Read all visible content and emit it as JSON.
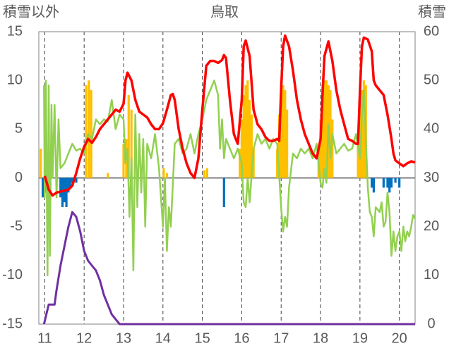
{
  "chart_data": {
    "type": "line",
    "title": "鳥取",
    "ylabel_left": "積雪以外",
    "ylabel_right": "積雪",
    "x_ticks": [
      "11",
      "12",
      "13",
      "14",
      "15",
      "16",
      "17",
      "18",
      "19",
      "20"
    ],
    "xlim": [
      10.85,
      20.4
    ],
    "ylim_left": [
      -15,
      15
    ],
    "ylim_right": [
      0,
      60
    ],
    "yticks_left": [
      "15",
      "10",
      "5",
      "0",
      "-5",
      "-10",
      "-15"
    ],
    "yticks_right": [
      "60",
      "50",
      "40",
      "30",
      "20",
      "10",
      "0"
    ],
    "grid": "dashed vertical at day boundaries",
    "colors": {
      "temperature": "#ff0000",
      "wind": "#92d050",
      "snow_depth": "#7030a0",
      "bar_positive": "#ffc000",
      "bar_negative": "#0070c0",
      "axis_text": "#595959"
    },
    "series_temperature": [
      [
        11.0,
        0.2
      ],
      [
        11.1,
        -1.2
      ],
      [
        11.2,
        -1.8
      ],
      [
        11.3,
        -1.5
      ],
      [
        11.4,
        -1.4
      ],
      [
        11.5,
        -1.3
      ],
      [
        11.6,
        -1.2
      ],
      [
        11.7,
        -0.8
      ],
      [
        11.8,
        0.5
      ],
      [
        11.9,
        2.0
      ],
      [
        12.0,
        3.2
      ],
      [
        12.1,
        4.0
      ],
      [
        12.2,
        3.6
      ],
      [
        12.3,
        4.2
      ],
      [
        12.4,
        5.0
      ],
      [
        12.5,
        5.5
      ],
      [
        12.6,
        6.0
      ],
      [
        12.7,
        6.5
      ],
      [
        12.8,
        7.0
      ],
      [
        12.9,
        6.8
      ],
      [
        13.0,
        7.6
      ],
      [
        13.05,
        10.0
      ],
      [
        13.1,
        10.8
      ],
      [
        13.2,
        10.0
      ],
      [
        13.3,
        8.0
      ],
      [
        13.4,
        6.8
      ],
      [
        13.5,
        6.5
      ],
      [
        13.6,
        6.2
      ],
      [
        13.7,
        5.5
      ],
      [
        13.8,
        5.0
      ],
      [
        13.9,
        5.0
      ],
      [
        14.0,
        5.6
      ],
      [
        14.1,
        7.0
      ],
      [
        14.2,
        8.5
      ],
      [
        14.25,
        8.6
      ],
      [
        14.3,
        8.0
      ],
      [
        14.4,
        5.0
      ],
      [
        14.5,
        3.0
      ],
      [
        14.6,
        1.5
      ],
      [
        14.7,
        0.5
      ],
      [
        14.8,
        0.0
      ],
      [
        14.9,
        2.0
      ],
      [
        15.0,
        7.0
      ],
      [
        15.1,
        11.5
      ],
      [
        15.2,
        12.0
      ],
      [
        15.3,
        12.0
      ],
      [
        15.4,
        11.8
      ],
      [
        15.5,
        12.1
      ],
      [
        15.55,
        12.6
      ],
      [
        15.6,
        12.3
      ],
      [
        15.7,
        8.0
      ],
      [
        15.8,
        4.5
      ],
      [
        15.9,
        3.5
      ],
      [
        16.0,
        8.0
      ],
      [
        16.05,
        13.5
      ],
      [
        16.1,
        14.1
      ],
      [
        16.2,
        12.5
      ],
      [
        16.3,
        7.0
      ],
      [
        16.4,
        5.5
      ],
      [
        16.5,
        5.0
      ],
      [
        16.6,
        4.2
      ],
      [
        16.7,
        3.8
      ],
      [
        16.8,
        3.8
      ],
      [
        16.9,
        4.0
      ],
      [
        16.95,
        3.8
      ],
      [
        17.0,
        9.0
      ],
      [
        17.05,
        13.5
      ],
      [
        17.1,
        14.6
      ],
      [
        17.2,
        13.5
      ],
      [
        17.3,
        11.0
      ],
      [
        17.4,
        8.0
      ],
      [
        17.5,
        6.0
      ],
      [
        17.6,
        4.5
      ],
      [
        17.7,
        3.5
      ],
      [
        17.8,
        2.5
      ],
      [
        17.9,
        2.0
      ],
      [
        18.0,
        4.0
      ],
      [
        18.05,
        8.5
      ],
      [
        18.1,
        12.5
      ],
      [
        18.2,
        14.0
      ],
      [
        18.3,
        12.0
      ],
      [
        18.4,
        9.0
      ],
      [
        18.5,
        7.0
      ],
      [
        18.6,
        5.5
      ],
      [
        18.7,
        4.0
      ],
      [
        18.8,
        3.8
      ],
      [
        18.9,
        3.5
      ],
      [
        18.95,
        3.5
      ],
      [
        19.0,
        9.0
      ],
      [
        19.05,
        13.5
      ],
      [
        19.1,
        14.4
      ],
      [
        19.2,
        14.2
      ],
      [
        19.3,
        13.0
      ],
      [
        19.35,
        10.0
      ],
      [
        19.4,
        9.5
      ],
      [
        19.5,
        9.0
      ],
      [
        19.6,
        8.5
      ],
      [
        19.7,
        6.5
      ],
      [
        19.8,
        4.0
      ],
      [
        19.85,
        2.5
      ],
      [
        19.9,
        1.8
      ],
      [
        20.0,
        1.5
      ],
      [
        20.1,
        1.2
      ],
      [
        20.2,
        1.5
      ],
      [
        20.3,
        1.7
      ],
      [
        20.4,
        1.6
      ]
    ],
    "series_wind": [
      [
        10.98,
        9.5
      ],
      [
        11.0,
        -2.0
      ],
      [
        11.03,
        10.0
      ],
      [
        11.07,
        -10.0
      ],
      [
        11.1,
        9.5
      ],
      [
        11.13,
        -8.0
      ],
      [
        11.17,
        7.5
      ],
      [
        11.2,
        0.0
      ],
      [
        11.25,
        7.5
      ],
      [
        11.3,
        -2.0
      ],
      [
        11.35,
        6.0
      ],
      [
        11.4,
        1.0
      ],
      [
        11.5,
        1.5
      ],
      [
        11.6,
        2.5
      ],
      [
        11.7,
        3.5
      ],
      [
        11.8,
        2.8
      ],
      [
        11.9,
        3.0
      ],
      [
        12.0,
        2.5
      ],
      [
        12.1,
        4.5
      ],
      [
        12.2,
        4.0
      ],
      [
        12.3,
        6.0
      ],
      [
        12.4,
        5.5
      ],
      [
        12.5,
        6.0
      ],
      [
        12.6,
        5.8
      ],
      [
        12.7,
        8.0
      ],
      [
        12.8,
        5.0
      ],
      [
        12.9,
        6.5
      ],
      [
        13.0,
        6.0
      ],
      [
        13.05,
        1.5
      ],
      [
        13.1,
        3.0
      ],
      [
        13.15,
        -4.0
      ],
      [
        13.2,
        2.0
      ],
      [
        13.25,
        -9.5
      ],
      [
        13.3,
        6.5
      ],
      [
        13.35,
        -3.0
      ],
      [
        13.4,
        4.5
      ],
      [
        13.45,
        -1.5
      ],
      [
        13.5,
        4.0
      ],
      [
        13.55,
        -5.0
      ],
      [
        13.6,
        3.5
      ],
      [
        13.7,
        2.0
      ],
      [
        13.8,
        4.5
      ],
      [
        13.9,
        1.0
      ],
      [
        14.0,
        -5.0
      ],
      [
        14.05,
        0.0
      ],
      [
        14.1,
        -7.5
      ],
      [
        14.15,
        -3.0
      ],
      [
        14.2,
        -5.0
      ],
      [
        14.3,
        3.5
      ],
      [
        14.4,
        4.0
      ],
      [
        14.5,
        2.5
      ],
      [
        14.6,
        3.0
      ],
      [
        14.7,
        4.5
      ],
      [
        14.8,
        2.5
      ],
      [
        14.9,
        4.5
      ],
      [
        15.0,
        6.0
      ],
      [
        15.1,
        8.0
      ],
      [
        15.2,
        9.0
      ],
      [
        15.3,
        10.0
      ],
      [
        15.4,
        8.5
      ],
      [
        15.45,
        3.0
      ],
      [
        15.5,
        6.0
      ],
      [
        15.55,
        2.0
      ],
      [
        15.6,
        4.0
      ],
      [
        15.7,
        3.0
      ],
      [
        15.8,
        2.0
      ],
      [
        15.9,
        3.0
      ],
      [
        16.0,
        1.5
      ],
      [
        16.05,
        -2.5
      ],
      [
        16.1,
        -3.0
      ],
      [
        16.15,
        0.0
      ],
      [
        16.2,
        -2.5
      ],
      [
        16.3,
        3.0
      ],
      [
        16.4,
        4.5
      ],
      [
        16.5,
        3.5
      ],
      [
        16.6,
        4.0
      ],
      [
        16.7,
        3.0
      ],
      [
        16.8,
        4.0
      ],
      [
        16.9,
        3.5
      ],
      [
        17.0,
        -3.0
      ],
      [
        17.05,
        -5.5
      ],
      [
        17.1,
        -4.0
      ],
      [
        17.15,
        -5.0
      ],
      [
        17.2,
        -1.0
      ],
      [
        17.3,
        2.5
      ],
      [
        17.4,
        2.0
      ],
      [
        17.5,
        3.0
      ],
      [
        17.6,
        2.5
      ],
      [
        17.7,
        3.0
      ],
      [
        17.8,
        2.0
      ],
      [
        17.9,
        3.5
      ],
      [
        18.0,
        -0.5
      ],
      [
        18.05,
        -1.0
      ],
      [
        18.1,
        1.0
      ],
      [
        18.15,
        -0.5
      ],
      [
        18.2,
        5.5
      ],
      [
        18.25,
        2.0
      ],
      [
        18.3,
        4.5
      ],
      [
        18.4,
        2.5
      ],
      [
        18.5,
        3.0
      ],
      [
        18.6,
        3.5
      ],
      [
        18.7,
        2.8
      ],
      [
        18.8,
        3.0
      ],
      [
        18.9,
        4.5
      ],
      [
        19.0,
        2.0
      ],
      [
        19.05,
        6.5
      ],
      [
        19.1,
        9.0
      ],
      [
        19.15,
        4.0
      ],
      [
        19.2,
        -1.0
      ],
      [
        19.25,
        -3.5
      ],
      [
        19.3,
        -4.0
      ],
      [
        19.35,
        -6.0
      ],
      [
        19.4,
        -3.0
      ],
      [
        19.5,
        -3.5
      ],
      [
        19.55,
        -2.5
      ],
      [
        19.6,
        -5.0
      ],
      [
        19.65,
        -4.5
      ],
      [
        19.7,
        -1.5
      ],
      [
        19.75,
        -3.5
      ],
      [
        19.8,
        -8.0
      ],
      [
        19.85,
        -5.5
      ],
      [
        19.9,
        -7.5
      ],
      [
        19.95,
        -6.0
      ],
      [
        20.0,
        -5.5
      ],
      [
        20.05,
        -7.5
      ],
      [
        20.1,
        -5.0
      ],
      [
        20.15,
        -6.5
      ],
      [
        20.2,
        -5.5
      ],
      [
        20.25,
        -6.0
      ],
      [
        20.3,
        -5.0
      ],
      [
        20.35,
        -3.8
      ],
      [
        20.4,
        -4.2
      ]
    ],
    "series_snow_depth_right": [
      [
        10.98,
        0
      ],
      [
        11.1,
        4
      ],
      [
        11.15,
        4
      ],
      [
        11.25,
        4
      ],
      [
        11.3,
        7
      ],
      [
        11.4,
        12
      ],
      [
        11.5,
        16
      ],
      [
        11.6,
        20
      ],
      [
        11.7,
        23
      ],
      [
        11.8,
        22
      ],
      [
        11.9,
        19
      ],
      [
        12.0,
        15
      ],
      [
        12.1,
        13
      ],
      [
        12.2,
        12
      ],
      [
        12.3,
        11
      ],
      [
        12.4,
        9
      ],
      [
        12.5,
        6
      ],
      [
        12.6,
        4
      ],
      [
        12.7,
        2
      ],
      [
        12.8,
        1
      ],
      [
        12.9,
        0
      ],
      [
        20.4,
        0
      ]
    ],
    "bars_positive": [
      [
        10.9,
        3.0
      ],
      [
        11.0,
        1.0
      ],
      [
        12.05,
        9.5
      ],
      [
        12.12,
        10.0
      ],
      [
        12.18,
        9.0
      ],
      [
        12.6,
        0.5
      ],
      [
        13.0,
        3.5
      ],
      [
        13.07,
        4.0
      ],
      [
        13.13,
        8.5
      ],
      [
        13.2,
        7.0
      ],
      [
        14.02,
        1.0
      ],
      [
        14.1,
        0.5
      ],
      [
        15.05,
        0.8
      ],
      [
        15.12,
        1.0
      ],
      [
        15.95,
        3.0
      ],
      [
        16.0,
        6.0
      ],
      [
        16.05,
        8.5
      ],
      [
        16.1,
        9.5
      ],
      [
        16.15,
        10.0
      ],
      [
        16.2,
        8.0
      ],
      [
        16.25,
        6.5
      ],
      [
        16.3,
        3.0
      ],
      [
        16.9,
        3.0
      ],
      [
        16.95,
        6.5
      ],
      [
        17.0,
        10.0
      ],
      [
        17.05,
        9.5
      ],
      [
        17.1,
        9.0
      ],
      [
        17.15,
        7.0
      ],
      [
        17.95,
        3.0
      ],
      [
        18.0,
        6.0
      ],
      [
        18.05,
        9.5
      ],
      [
        18.1,
        10.0
      ],
      [
        18.15,
        10.0
      ],
      [
        18.2,
        9.5
      ],
      [
        18.25,
        9.0
      ],
      [
        18.3,
        6.0
      ],
      [
        18.95,
        3.5
      ],
      [
        19.0,
        7.5
      ],
      [
        19.05,
        9.0
      ],
      [
        19.1,
        10.0
      ],
      [
        19.15,
        9.5
      ]
    ],
    "bars_negative": [
      [
        10.95,
        -2.0
      ],
      [
        11.05,
        -1.5
      ],
      [
        11.12,
        -0.5
      ],
      [
        11.4,
        -2.0
      ],
      [
        11.45,
        -3.0
      ],
      [
        11.5,
        -2.5
      ],
      [
        11.55,
        -3.0
      ],
      [
        11.6,
        -1.5
      ],
      [
        11.65,
        -1.0
      ],
      [
        11.7,
        -0.5
      ],
      [
        11.8,
        -0.5
      ],
      [
        15.55,
        -3.0
      ],
      [
        19.3,
        -1.0
      ],
      [
        19.35,
        -1.5
      ],
      [
        19.6,
        -1.0
      ],
      [
        19.7,
        -1.0
      ],
      [
        19.75,
        -1.5
      ],
      [
        19.8,
        -1.0
      ],
      [
        19.9,
        -0.5
      ],
      [
        20.0,
        -1.0
      ]
    ]
  }
}
